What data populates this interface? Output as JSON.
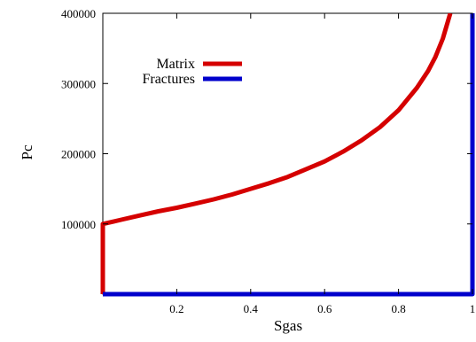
{
  "chart_data": {
    "type": "line",
    "title": "",
    "xlabel": "Sgas",
    "ylabel": "Pc",
    "xlim": [
      0,
      1
    ],
    "ylim": [
      0,
      400000
    ],
    "x_ticks": [
      0.2,
      0.4,
      0.6,
      0.8,
      1
    ],
    "x_tick_labels": [
      "0.2",
      "0.4",
      "0.6",
      "0.8",
      "1"
    ],
    "y_ticks": [
      100000,
      200000,
      300000,
      400000
    ],
    "y_tick_labels": [
      "100000",
      "200000",
      "300000",
      "400000"
    ],
    "grid": false,
    "legend": {
      "position": "top-left"
    },
    "series": [
      {
        "name": "Matrix",
        "color": "#d50000",
        "x": [
          0,
          0,
          0.05,
          0.1,
          0.15,
          0.2,
          0.25,
          0.3,
          0.35,
          0.4,
          0.45,
          0.5,
          0.55,
          0.6,
          0.65,
          0.7,
          0.75,
          0.8,
          0.85,
          0.88,
          0.9,
          0.92,
          0.94
        ],
        "y": [
          0,
          100000,
          106000,
          112000,
          118000,
          123000,
          129000,
          135000,
          142000,
          150000,
          158000,
          167000,
          178000,
          189000,
          203000,
          219000,
          238000,
          262000,
          294000,
          318000,
          338000,
          364000,
          400000
        ]
      },
      {
        "name": "Fractures",
        "color": "#0000cc",
        "x": [
          0,
          1,
          1
        ],
        "y": [
          0,
          0,
          400000
        ]
      }
    ]
  }
}
